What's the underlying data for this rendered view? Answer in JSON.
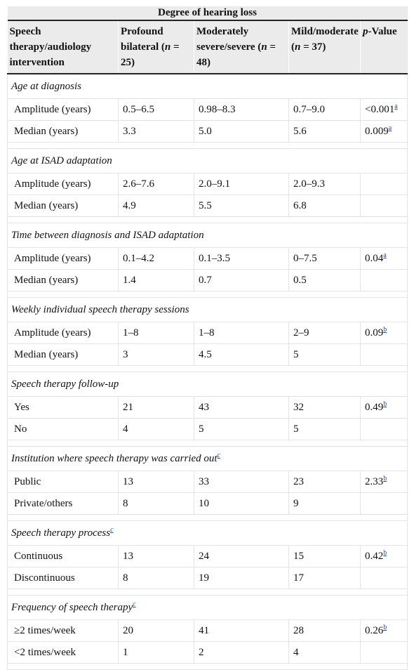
{
  "header": {
    "group_title": "Degree of hearing loss",
    "col1": "Speech therapy/audiology intervention",
    "col2_pre": "Profound bilateral (",
    "col2_n": "n",
    "col2_post": " = 25)",
    "col3_pre": "Moderately severe/severe (",
    "col3_n": "n",
    "col3_post": " = 48)",
    "col4_pre": "Mild/moderate (",
    "col4_n": "n",
    "col4_post": " = 37)",
    "col5_p": "p",
    "col5_rest": "-Value"
  },
  "sections": [
    {
      "title": "Age at diagnosis",
      "title_note": "",
      "rows": [
        {
          "label": "Amplitude (years)",
          "c2": "0.5–6.5",
          "c3": "0.98–8.3",
          "c4": "0.7–9.0",
          "p": "<0.001",
          "note": "a"
        },
        {
          "label": "Median (years)",
          "c2": "3.3",
          "c3": "5.0",
          "c4": "5.6",
          "p": "0.009",
          "note": "a"
        }
      ]
    },
    {
      "title": "Age at ISAD adaptation",
      "title_note": "",
      "rows": [
        {
          "label": "Amplitude (years)",
          "c2": "2.6–7.6",
          "c3": "2.0–9.1",
          "c4": "2.0–9.3",
          "p": "",
          "note": ""
        },
        {
          "label": "Median (years)",
          "c2": "4.9",
          "c3": "5.5",
          "c4": "6.8",
          "p": "",
          "note": ""
        }
      ]
    },
    {
      "title": "Time between diagnosis and ISAD adaptation",
      "title_note": "",
      "rows": [
        {
          "label": "Amplitude (years)",
          "c2": "0.1–4.2",
          "c3": "0.1–3.5",
          "c4": "0–7.5",
          "p": "0.04",
          "note": "a"
        },
        {
          "label": "Median (years)",
          "c2": "1.4",
          "c3": "0.7",
          "c4": "0.5",
          "p": "",
          "note": ""
        }
      ]
    },
    {
      "title": "Weekly individual speech therapy sessions",
      "title_note": "",
      "rows": [
        {
          "label": "Amplitude (years)",
          "c2": "1–8",
          "c3": "1–8",
          "c4": "2–9",
          "p": "0.09",
          "note": "b"
        },
        {
          "label": "Median (years)",
          "c2": "3",
          "c3": "4.5",
          "c4": "5",
          "p": "",
          "note": ""
        }
      ]
    },
    {
      "title": "Speech therapy follow-up",
      "title_note": "",
      "rows": [
        {
          "label": "Yes",
          "c2": "21",
          "c3": "43",
          "c4": "32",
          "p": "0.49",
          "note": "b"
        },
        {
          "label": "No",
          "c2": "4",
          "c3": "5",
          "c4": "5",
          "p": "",
          "note": ""
        }
      ]
    },
    {
      "title": "Institution where speech therapy was carried out",
      "title_note": "c",
      "rows": [
        {
          "label": "Public",
          "c2": "13",
          "c3": "33",
          "c4": "23",
          "p": "2.33",
          "note": "b"
        },
        {
          "label": "Private/others",
          "c2": "8",
          "c3": "10",
          "c4": "9",
          "p": "",
          "note": ""
        }
      ]
    },
    {
      "title": "Speech therapy process",
      "title_note": "c",
      "rows": [
        {
          "label": "Continuous",
          "c2": "13",
          "c3": "24",
          "c4": "15",
          "p": "0.42",
          "note": "b"
        },
        {
          "label": "Discontinuous",
          "c2": "8",
          "c3": "19",
          "c4": "17",
          "p": "",
          "note": ""
        }
      ]
    },
    {
      "title": "Frequency of speech therapy",
      "title_note": "c",
      "rows": [
        {
          "label": "≥2 times/week",
          "c2": "20",
          "c3": "41",
          "c4": "28",
          "p": "0.26",
          "note": "b"
        },
        {
          "label": "<2 times/week",
          "c2": "1",
          "c3": "2",
          "c4": "4",
          "p": "",
          "note": ""
        }
      ]
    }
  ]
}
